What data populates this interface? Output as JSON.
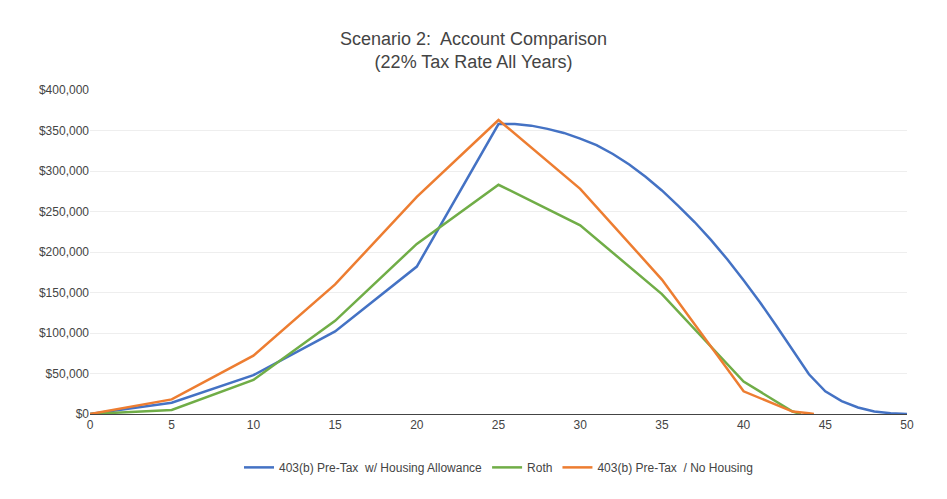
{
  "chart_data": {
    "type": "line",
    "title": "Scenario 2:  Account Comparison",
    "subtitle": "(22% Tax Rate All Years)",
    "xlim": [
      0,
      50
    ],
    "ylim": [
      0,
      400000
    ],
    "xticks": [
      0,
      5,
      10,
      15,
      20,
      25,
      30,
      35,
      40,
      45,
      50
    ],
    "yticks": [
      {
        "value": 0,
        "label": "$0"
      },
      {
        "value": 50000,
        "label": "$50,000"
      },
      {
        "value": 100000,
        "label": "$100,000"
      },
      {
        "value": 150000,
        "label": "$150,000"
      },
      {
        "value": 200000,
        "label": "$200,000"
      },
      {
        "value": 250000,
        "label": "$250,000"
      },
      {
        "value": 300000,
        "label": "$300,000"
      },
      {
        "value": 350000,
        "label": "$350,000"
      },
      {
        "value": 400000,
        "label": "$400,000"
      }
    ],
    "grid": true,
    "legend": "bottom",
    "series": [
      {
        "name": "403(b) Pre-Tax  w/ Housing Allowance",
        "color": "#4472C4",
        "x": [
          0,
          5,
          10,
          15,
          20,
          25,
          26,
          27,
          28,
          29,
          30,
          31,
          32,
          33,
          34,
          35,
          36,
          37,
          38,
          39,
          40,
          41,
          42,
          43,
          44,
          45,
          46,
          47,
          48,
          49,
          50
        ],
        "values": [
          0,
          14000,
          48000,
          102000,
          182000,
          358000,
          358000,
          356000,
          352000,
          347000,
          340000,
          332000,
          321000,
          308000,
          293000,
          276000,
          257000,
          237000,
          215000,
          191000,
          165000,
          138000,
          109000,
          79000,
          49000,
          28000,
          16000,
          8000,
          3000,
          1000,
          0
        ]
      },
      {
        "name": "Roth",
        "color": "#70AD47",
        "x": [
          0,
          5,
          10,
          15,
          20,
          25,
          30,
          35,
          40,
          43,
          43.5
        ],
        "values": [
          0,
          5000,
          42000,
          115000,
          210000,
          283000,
          233000,
          148000,
          40000,
          3000,
          0
        ]
      },
      {
        "name": "403(b) Pre-Tax  / No Housing",
        "color": "#ED7D31",
        "x": [
          0,
          5,
          10,
          15,
          20,
          25,
          30,
          35,
          40,
          43,
          44,
          44.3
        ],
        "values": [
          0,
          18000,
          72000,
          160000,
          268000,
          363000,
          278000,
          166000,
          28000,
          3000,
          1000,
          0
        ]
      }
    ]
  }
}
